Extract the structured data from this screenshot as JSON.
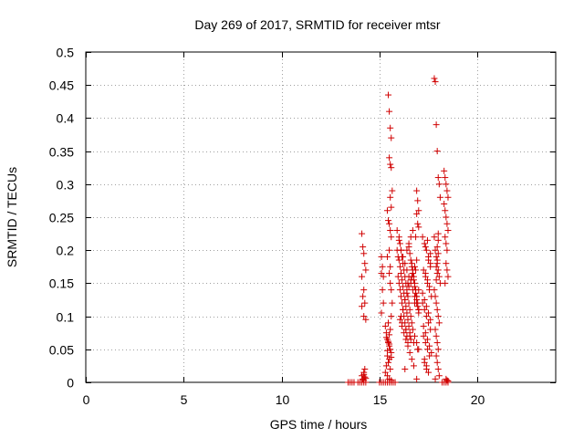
{
  "chart_data": {
    "type": "scatter",
    "title": "Day 269 of 2017, SRMTID for receiver mtsr",
    "xlabel": "GPS time / hours",
    "ylabel": "SRMTID / TECUs",
    "xlim": [
      0,
      24
    ],
    "ylim": [
      0,
      0.5
    ],
    "xticks": [
      0,
      5,
      10,
      15,
      20
    ],
    "yticks": [
      0,
      0.05,
      0.1,
      0.15,
      0.2,
      0.25,
      0.3,
      0.35,
      0.4,
      0.45,
      0.5
    ],
    "xtick_labels": [
      "0",
      "5",
      "10",
      "15",
      "20"
    ],
    "ytick_labels": [
      "0",
      "0.05",
      "0.1",
      "0.15",
      "0.2",
      "0.25",
      "0.3",
      "0.35",
      "0.4",
      "0.45",
      "0.5"
    ],
    "grid": true,
    "marker": "+",
    "color": "#d00000",
    "series": [
      {
        "name": "SRMTID",
        "x": [
          13.4,
          13.5,
          13.6,
          13.7,
          13.9,
          14.0,
          14.1,
          14.2,
          14.3,
          14.1,
          14.15,
          14.2,
          14.25,
          14.3,
          14.1,
          14.2,
          14.15,
          14.25,
          14.1,
          14.2,
          14.3,
          14.2,
          14.25,
          14.1,
          14.15,
          14.2,
          14.25,
          14.2,
          14.3,
          15.0,
          15.1,
          15.2,
          15.3,
          15.4,
          15.5,
          15.6,
          15.7,
          15.8,
          15.1,
          15.15,
          15.1,
          15.2,
          15.15,
          15.2,
          15.1,
          15.3,
          15.35,
          15.4,
          15.45,
          15.5,
          15.55,
          15.6,
          15.4,
          15.5,
          15.45,
          15.35,
          15.55,
          15.3,
          15.4,
          15.5,
          15.6,
          15.45,
          15.35,
          15.5,
          15.4,
          15.6,
          15.5,
          15.55,
          15.45,
          15.4,
          15.45,
          15.5,
          15.55,
          15.6,
          15.5,
          15.4,
          15.55,
          15.45,
          15.5,
          15.55,
          15.6,
          15.5,
          15.55,
          15.6,
          15.65,
          15.55,
          15.6,
          15.6,
          15.65,
          15.6,
          15.55,
          15.5,
          15.9,
          16.0,
          16.05,
          16.1,
          16.15,
          16.2,
          16.25,
          16.3,
          16.35,
          16.4,
          16.45,
          16.5,
          16.55,
          16.6,
          16.65,
          16.7,
          16.8,
          16.9,
          17.0,
          15.9,
          15.95,
          16.0,
          16.05,
          16.1,
          16.15,
          16.2,
          16.25,
          16.3,
          16.35,
          16.4,
          16.45,
          16.5,
          16.55,
          16.6,
          16.65,
          16.7,
          16.75,
          16.8,
          16.85,
          16.9,
          16.95,
          17.0,
          15.95,
          16.0,
          16.05,
          16.1,
          16.15,
          16.2,
          16.25,
          16.3,
          16.35,
          16.4,
          16.45,
          16.5,
          16.55,
          16.6,
          16.65,
          16.7,
          16.75,
          16.8,
          16.85,
          16.9,
          16.95,
          17.0,
          16.0,
          16.1,
          16.2,
          16.3,
          16.4,
          16.5,
          16.6,
          16.7,
          16.8,
          16.9,
          17.0,
          16.05,
          16.15,
          16.25,
          16.35,
          16.45,
          16.55,
          16.65,
          16.75,
          16.85,
          16.1,
          16.2,
          16.3,
          16.4,
          16.5,
          16.6,
          16.7,
          16.8,
          16.9,
          16.15,
          16.35,
          16.55,
          16.75,
          16.95,
          16.3,
          16.4,
          16.5,
          16.6,
          16.7,
          16.8,
          16.9,
          17.0,
          16.45,
          16.65,
          16.85,
          16.9,
          16.95,
          17.0,
          16.9,
          16.95,
          17.0,
          16.9,
          17.2,
          17.3,
          17.4,
          17.5,
          17.6,
          17.25,
          17.35,
          17.45,
          17.55,
          17.65,
          17.2,
          17.3,
          17.4,
          17.5,
          17.6,
          17.25,
          17.35,
          17.45,
          17.55,
          17.3,
          17.4,
          17.5,
          17.6,
          17.35,
          17.45,
          17.55,
          17.2,
          17.3,
          17.4,
          17.5,
          17.6,
          17.25,
          17.35,
          17.45,
          17.55,
          17.65,
          17.3,
          17.4,
          17.5,
          17.6,
          17.35,
          17.45,
          17.8,
          17.85,
          17.9,
          17.95,
          18.0,
          18.05,
          18.1,
          17.8,
          17.85,
          17.9,
          17.95,
          18.0,
          18.05,
          18.1,
          17.8,
          17.85,
          17.9,
          17.95,
          18.0,
          18.05,
          17.85,
          17.9,
          17.95,
          18.0,
          17.9,
          17.95,
          18.0,
          18.05,
          17.85,
          17.9,
          17.95,
          17.9,
          17.95,
          18.0,
          17.95,
          18.0,
          18.0,
          18.3,
          18.35,
          18.4,
          18.45,
          18.5,
          18.3,
          18.35,
          18.4,
          18.45,
          18.5,
          18.35,
          18.4,
          18.45,
          18.4,
          18.45,
          18.5,
          18.35,
          18.4,
          18.45,
          18.5,
          18.2,
          18.3,
          18.4,
          18.5
        ],
        "y": [
          0,
          0,
          0,
          0,
          0,
          0,
          0,
          0,
          0,
          0.225,
          0.205,
          0.195,
          0.18,
          0.17,
          0.16,
          0.14,
          0.13,
          0.12,
          0.115,
          0.1,
          0.095,
          0.015,
          0.02,
          0.01,
          0.005,
          0.003,
          0.008,
          0.012,
          0.006,
          0,
          0,
          0,
          0,
          0,
          0,
          0,
          0,
          0,
          0.19,
          0.175,
          0.165,
          0.16,
          0.14,
          0.12,
          0.105,
          0.085,
          0.075,
          0.065,
          0.06,
          0.055,
          0.05,
          0.045,
          0.04,
          0.035,
          0.03,
          0.025,
          0.02,
          0.015,
          0.01,
          0.005,
          0.003,
          0.062,
          0.068,
          0.058,
          0.048,
          0.038,
          0.072,
          0.08,
          0.09,
          0.26,
          0.245,
          0.24,
          0.23,
          0.22,
          0.2,
          0.19,
          0.175,
          0.435,
          0.41,
          0.385,
          0.37,
          0.34,
          0.33,
          0.325,
          0.29,
          0.28,
          0.265,
          0.1,
          0.12,
          0.14,
          0.15,
          0.165,
          0.23,
          0.22,
          0.21,
          0.2,
          0.19,
          0.18,
          0.17,
          0.16,
          0.15,
          0.14,
          0.13,
          0.12,
          0.11,
          0.1,
          0.09,
          0.08,
          0.07,
          0.06,
          0.05,
          0.2,
          0.19,
          0.185,
          0.175,
          0.165,
          0.155,
          0.145,
          0.135,
          0.125,
          0.115,
          0.105,
          0.095,
          0.085,
          0.075,
          0.065,
          0.18,
          0.17,
          0.16,
          0.15,
          0.14,
          0.13,
          0.12,
          0.11,
          0.16,
          0.15,
          0.14,
          0.13,
          0.12,
          0.11,
          0.1,
          0.09,
          0.08,
          0.07,
          0.06,
          0.205,
          0.195,
          0.185,
          0.175,
          0.165,
          0.155,
          0.145,
          0.135,
          0.125,
          0.115,
          0.105,
          0.215,
          0.2,
          0.19,
          0.18,
          0.17,
          0.16,
          0.15,
          0.14,
          0.13,
          0.12,
          0.11,
          0.095,
          0.085,
          0.075,
          0.065,
          0.055,
          0.045,
          0.035,
          0.025,
          0.22,
          0.1,
          0.11,
          0.125,
          0.135,
          0.145,
          0.155,
          0.165,
          0.175,
          0.185,
          0.09,
          0.08,
          0.07,
          0.06,
          0.05,
          0.02,
          0.2,
          0.21,
          0.22,
          0.23,
          0.12,
          0.13,
          0.14,
          0.15,
          0.16,
          0.17,
          0.29,
          0.275,
          0.26,
          0.255,
          0.24,
          0.235,
          0.005,
          0.22,
          0.21,
          0.2,
          0.19,
          0.18,
          0.17,
          0.16,
          0.15,
          0.14,
          0.13,
          0.12,
          0.11,
          0.1,
          0.09,
          0.08,
          0.07,
          0.06,
          0.05,
          0.04,
          0.03,
          0.02,
          0.015,
          0.175,
          0.165,
          0.155,
          0.145,
          0.135,
          0.125,
          0.115,
          0.105,
          0.095,
          0.085,
          0.075,
          0.065,
          0.055,
          0.045,
          0.035,
          0.025,
          0.185,
          0.195,
          0.205,
          0.215,
          0.46,
          0.455,
          0.39,
          0.35,
          0.31,
          0.3,
          0.28,
          0.22,
          0.2,
          0.19,
          0.18,
          0.17,
          0.16,
          0.15,
          0.14,
          0.13,
          0.12,
          0.11,
          0.1,
          0.09,
          0.08,
          0.07,
          0.06,
          0.05,
          0.04,
          0.03,
          0.02,
          0.01,
          0.005,
          0.155,
          0.165,
          0.175,
          0.185,
          0.195,
          0.205,
          0.215,
          0.225,
          0.32,
          0.31,
          0.3,
          0.29,
          0.28,
          0.27,
          0.26,
          0.25,
          0.24,
          0.23,
          0.22,
          0.21,
          0.2,
          0.18,
          0.17,
          0.16,
          0.15,
          0.005,
          0.003,
          0.002,
          0,
          0,
          0,
          0
        ]
      }
    ]
  }
}
